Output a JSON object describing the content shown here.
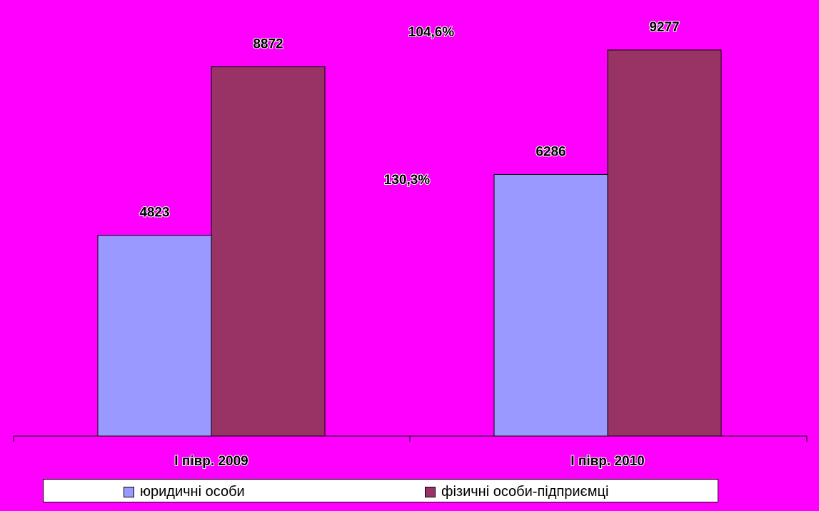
{
  "chart_data": {
    "type": "bar",
    "categories": [
      "I півр. 2009",
      "I півр. 2010"
    ],
    "series": [
      {
        "name": "юридичні особи",
        "values": [
          4823,
          6286
        ],
        "color": "#9999FF"
      },
      {
        "name": "фізичні особи-підприємці",
        "values": [
          8872,
          9277
        ],
        "color": "#993366"
      }
    ],
    "annotations": [
      "130,3%",
      "104,6%"
    ],
    "ylim": [
      0,
      10000
    ],
    "grid": false,
    "legend_position": "bottom"
  }
}
